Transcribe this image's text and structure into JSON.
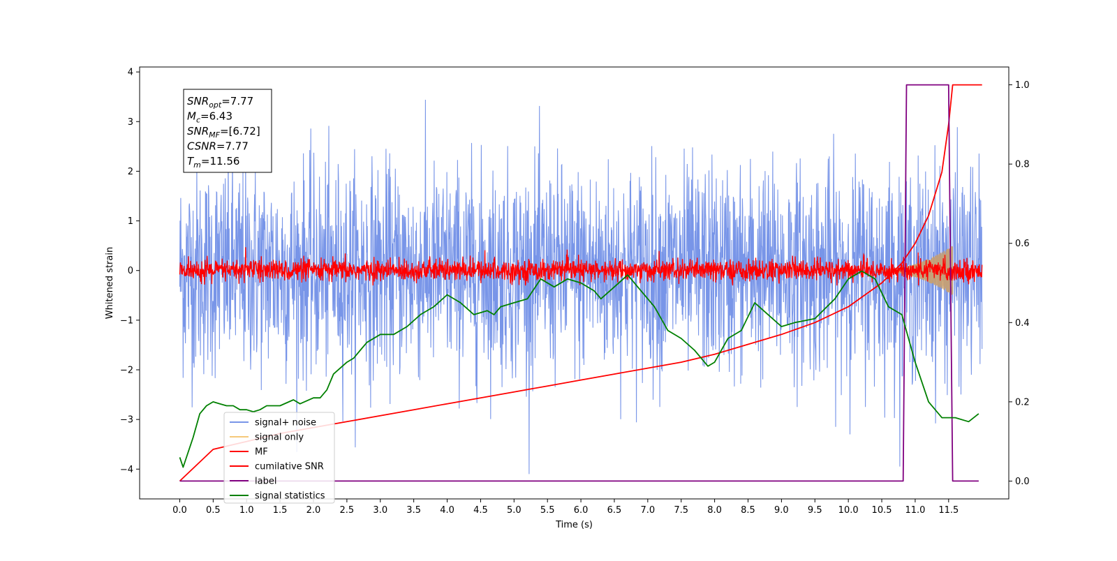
{
  "chart_data": {
    "type": "line",
    "xlabel": "Time (s)",
    "ylabel": "Whitened strain",
    "xlim": [
      -0.6,
      12.4
    ],
    "ylim": [
      -4.6,
      4.1
    ],
    "y2lim": [
      -0.045,
      1.045
    ],
    "x_ticks": [
      0.0,
      0.5,
      1.0,
      1.5,
      2.0,
      2.5,
      3.0,
      3.5,
      4.0,
      4.5,
      5.0,
      5.5,
      6.0,
      6.5,
      7.0,
      7.5,
      8.0,
      8.5,
      9.0,
      9.5,
      10.0,
      10.5,
      11.0,
      11.5
    ],
    "x_tick_labels": [
      "0.0",
      "0.5",
      "1.0",
      "1.5",
      "2.0",
      "2.5",
      "3.0",
      "3.5",
      "4.0",
      "4.5",
      "5.0",
      "5.5",
      "6.0",
      "6.5",
      "7.0",
      "7.5",
      "8.0",
      "8.5",
      "9.0",
      "9.5",
      "10.0",
      "10.5",
      "11.0",
      "11.5"
    ],
    "y_ticks": [
      4,
      3,
      2,
      1,
      0,
      -1,
      -2,
      -3,
      -4
    ],
    "y_tick_labels": [
      "4",
      "3",
      "2",
      "1",
      "0",
      "−1",
      "−2",
      "−3",
      "−4"
    ],
    "y2_ticks": [
      1.0,
      0.8,
      0.6,
      0.4,
      0.2,
      0.0
    ],
    "y2_tick_labels": [
      "1.0",
      "0.8",
      "0.6",
      "0.4",
      "0.2",
      "0.0"
    ],
    "grid": false,
    "legend_position": "lower-left",
    "info_box": [
      {
        "base": "SNR",
        "sub": "opt",
        "value": "=7.77"
      },
      {
        "base": "M",
        "sub": "c",
        "value": "=6.43"
      },
      {
        "base": "SNR",
        "sub": "MF",
        "value": "=[6.72]"
      },
      {
        "base": "CSNR",
        "sub": "",
        "value": "=7.77"
      },
      {
        "base": "T",
        "sub": "m",
        "value": "=11.56"
      }
    ],
    "series": [
      {
        "name": "signal+ noise",
        "axis": "left",
        "color": "#7895e8",
        "description": "whitened noisy strain, roughly noise between -4.1 and 3.7 across 0-12 s",
        "x_range": [
          0.0,
          12.0
        ],
        "envelope": [
          -4.1,
          3.7
        ]
      },
      {
        "name": "signal only",
        "axis": "left",
        "color": "#f5c97a",
        "description": "chirp signal growing from ~10.5 s to 11.56 s",
        "x_range": [
          10.4,
          11.56
        ],
        "amplitude_max": 0.5
      },
      {
        "name": "MF",
        "axis": "left",
        "color": "#ff0000",
        "x_range": [
          0.0,
          12.0
        ],
        "envelope": [
          -0.3,
          0.6
        ]
      },
      {
        "name": "cumilative SNR",
        "axis": "right",
        "color": "#ff0000",
        "x": [
          0.0,
          0.5,
          1.0,
          1.5,
          2.0,
          2.5,
          3.0,
          3.5,
          4.0,
          4.5,
          5.0,
          5.5,
          6.0,
          6.5,
          7.0,
          7.5,
          8.0,
          8.5,
          9.0,
          9.5,
          10.0,
          10.5,
          10.8,
          11.0,
          11.2,
          11.4,
          11.5,
          11.56,
          12.0
        ],
        "values": [
          0.0,
          0.08,
          0.1,
          0.12,
          0.135,
          0.15,
          0.165,
          0.18,
          0.195,
          0.21,
          0.225,
          0.24,
          0.255,
          0.27,
          0.285,
          0.3,
          0.32,
          0.345,
          0.37,
          0.4,
          0.44,
          0.5,
          0.55,
          0.6,
          0.67,
          0.78,
          0.9,
          1.0,
          1.0
        ]
      },
      {
        "name": "label",
        "axis": "right",
        "color": "#800080",
        "x": [
          0.0,
          10.82,
          10.87,
          11.5,
          11.56,
          11.95
        ],
        "values": [
          0.0,
          0.0,
          1.0,
          1.0,
          0.0,
          0.0
        ]
      },
      {
        "name": "signal statistics",
        "axis": "right",
        "color": "#008000",
        "x": [
          0.0,
          0.05,
          0.2,
          0.3,
          0.4,
          0.5,
          0.6,
          0.7,
          0.8,
          0.9,
          1.0,
          1.1,
          1.2,
          1.3,
          1.5,
          1.7,
          1.8,
          2.0,
          2.1,
          2.2,
          2.3,
          2.5,
          2.6,
          2.7,
          2.8,
          3.0,
          3.2,
          3.4,
          3.6,
          3.8,
          4.0,
          4.2,
          4.4,
          4.6,
          4.7,
          4.8,
          5.0,
          5.2,
          5.4,
          5.6,
          5.8,
          6.0,
          6.2,
          6.3,
          6.5,
          6.7,
          6.9,
          7.1,
          7.3,
          7.5,
          7.7,
          7.9,
          8.0,
          8.2,
          8.4,
          8.6,
          8.8,
          9.0,
          9.2,
          9.5,
          9.8,
          10.0,
          10.2,
          10.4,
          10.6,
          10.8,
          11.0,
          11.2,
          11.4,
          11.5,
          11.6,
          11.8,
          11.95
        ],
        "values": [
          0.06,
          0.035,
          0.11,
          0.17,
          0.19,
          0.2,
          0.195,
          0.19,
          0.19,
          0.18,
          0.18,
          0.175,
          0.18,
          0.19,
          0.19,
          0.205,
          0.195,
          0.21,
          0.21,
          0.23,
          0.27,
          0.3,
          0.31,
          0.33,
          0.35,
          0.37,
          0.37,
          0.39,
          0.42,
          0.44,
          0.47,
          0.45,
          0.42,
          0.43,
          0.42,
          0.44,
          0.45,
          0.46,
          0.51,
          0.49,
          0.51,
          0.5,
          0.48,
          0.46,
          0.49,
          0.52,
          0.48,
          0.44,
          0.38,
          0.36,
          0.33,
          0.29,
          0.3,
          0.36,
          0.38,
          0.45,
          0.42,
          0.39,
          0.4,
          0.41,
          0.46,
          0.51,
          0.53,
          0.51,
          0.44,
          0.42,
          0.3,
          0.2,
          0.16,
          0.16,
          0.16,
          0.15,
          0.17
        ]
      }
    ]
  }
}
